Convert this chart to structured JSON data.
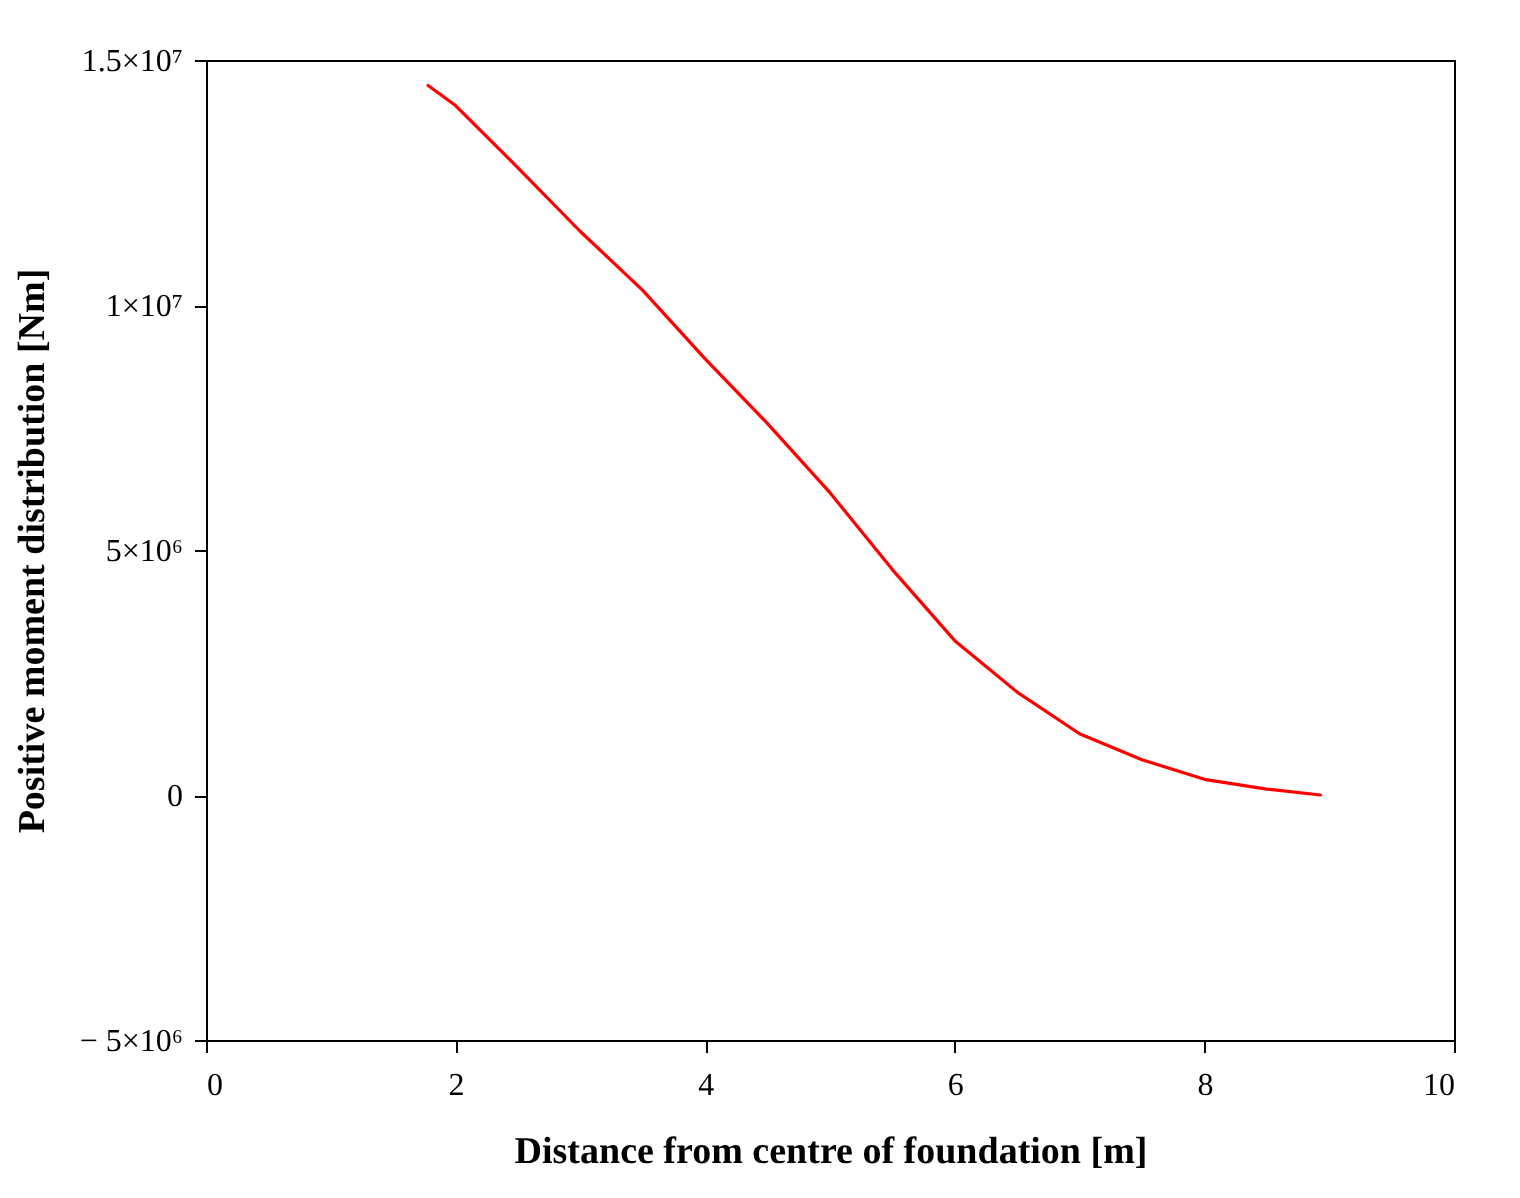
{
  "chart_data": {
    "type": "line",
    "xlabel": "Distance from centre of foundation  [m]",
    "ylabel": "Positive moment distribution [Nm]",
    "series": [
      {
        "color": "#ff0000",
        "x": [
          1.78,
          2,
          2.5,
          3,
          3.5,
          4,
          4.5,
          5,
          5.5,
          6,
          6.5,
          7,
          7.5,
          8,
          8.5,
          8.93
        ],
        "values": [
          14480000,
          14070000,
          12800000,
          11500000,
          10300000,
          8900000,
          7580000,
          6170000,
          4600000,
          3150000,
          2100000,
          1250000,
          720000,
          320000,
          120000,
          0
        ]
      }
    ],
    "xlim": [
      0,
      10
    ],
    "xticks": [
      0,
      2,
      4,
      6,
      8,
      10
    ],
    "ylim": [
      -5000000,
      15000000
    ],
    "yticks": [
      {
        "value": -5000000,
        "label": "− 5×10⁶"
      },
      {
        "value": 0,
        "label": "0"
      },
      {
        "value": 5000000,
        "label": "5×10⁶"
      },
      {
        "value": 10000000,
        "label": "1×10⁷"
      },
      {
        "value": 15000000,
        "label": "1.5×10⁷"
      }
    ],
    "grid": false,
    "marker": "none",
    "line_style": "solid"
  }
}
